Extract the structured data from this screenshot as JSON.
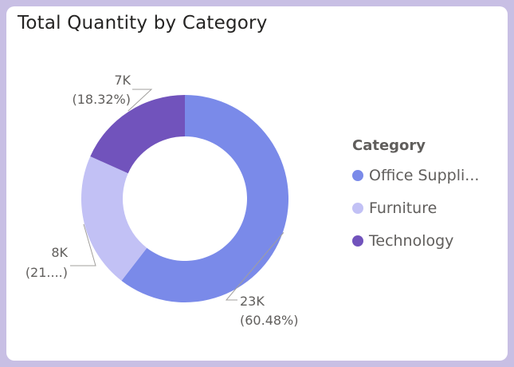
{
  "card": {
    "title": "Total Quantity by Category"
  },
  "chart_data": {
    "type": "pie",
    "variant": "donut",
    "title": "Total Quantity by Category",
    "legend_title": "Category",
    "legend_position": "right",
    "slices": [
      {
        "name": "Office Supplies",
        "legend_label": "Office Suppli...",
        "value": 23000,
        "percent": 60.48,
        "value_label": "23K",
        "percent_label": "(60.48%)",
        "color": "#7a8ae9"
      },
      {
        "name": "Furniture",
        "legend_label": "Furniture",
        "value": 8000,
        "percent": 21.2,
        "value_label": "8K",
        "percent_label": "(21....)",
        "color": "#c2c1f5"
      },
      {
        "name": "Technology",
        "legend_label": "Technology",
        "value": 7000,
        "percent": 18.32,
        "value_label": "7K",
        "percent_label": "(18.32%)",
        "color": "#7153bc"
      }
    ]
  }
}
